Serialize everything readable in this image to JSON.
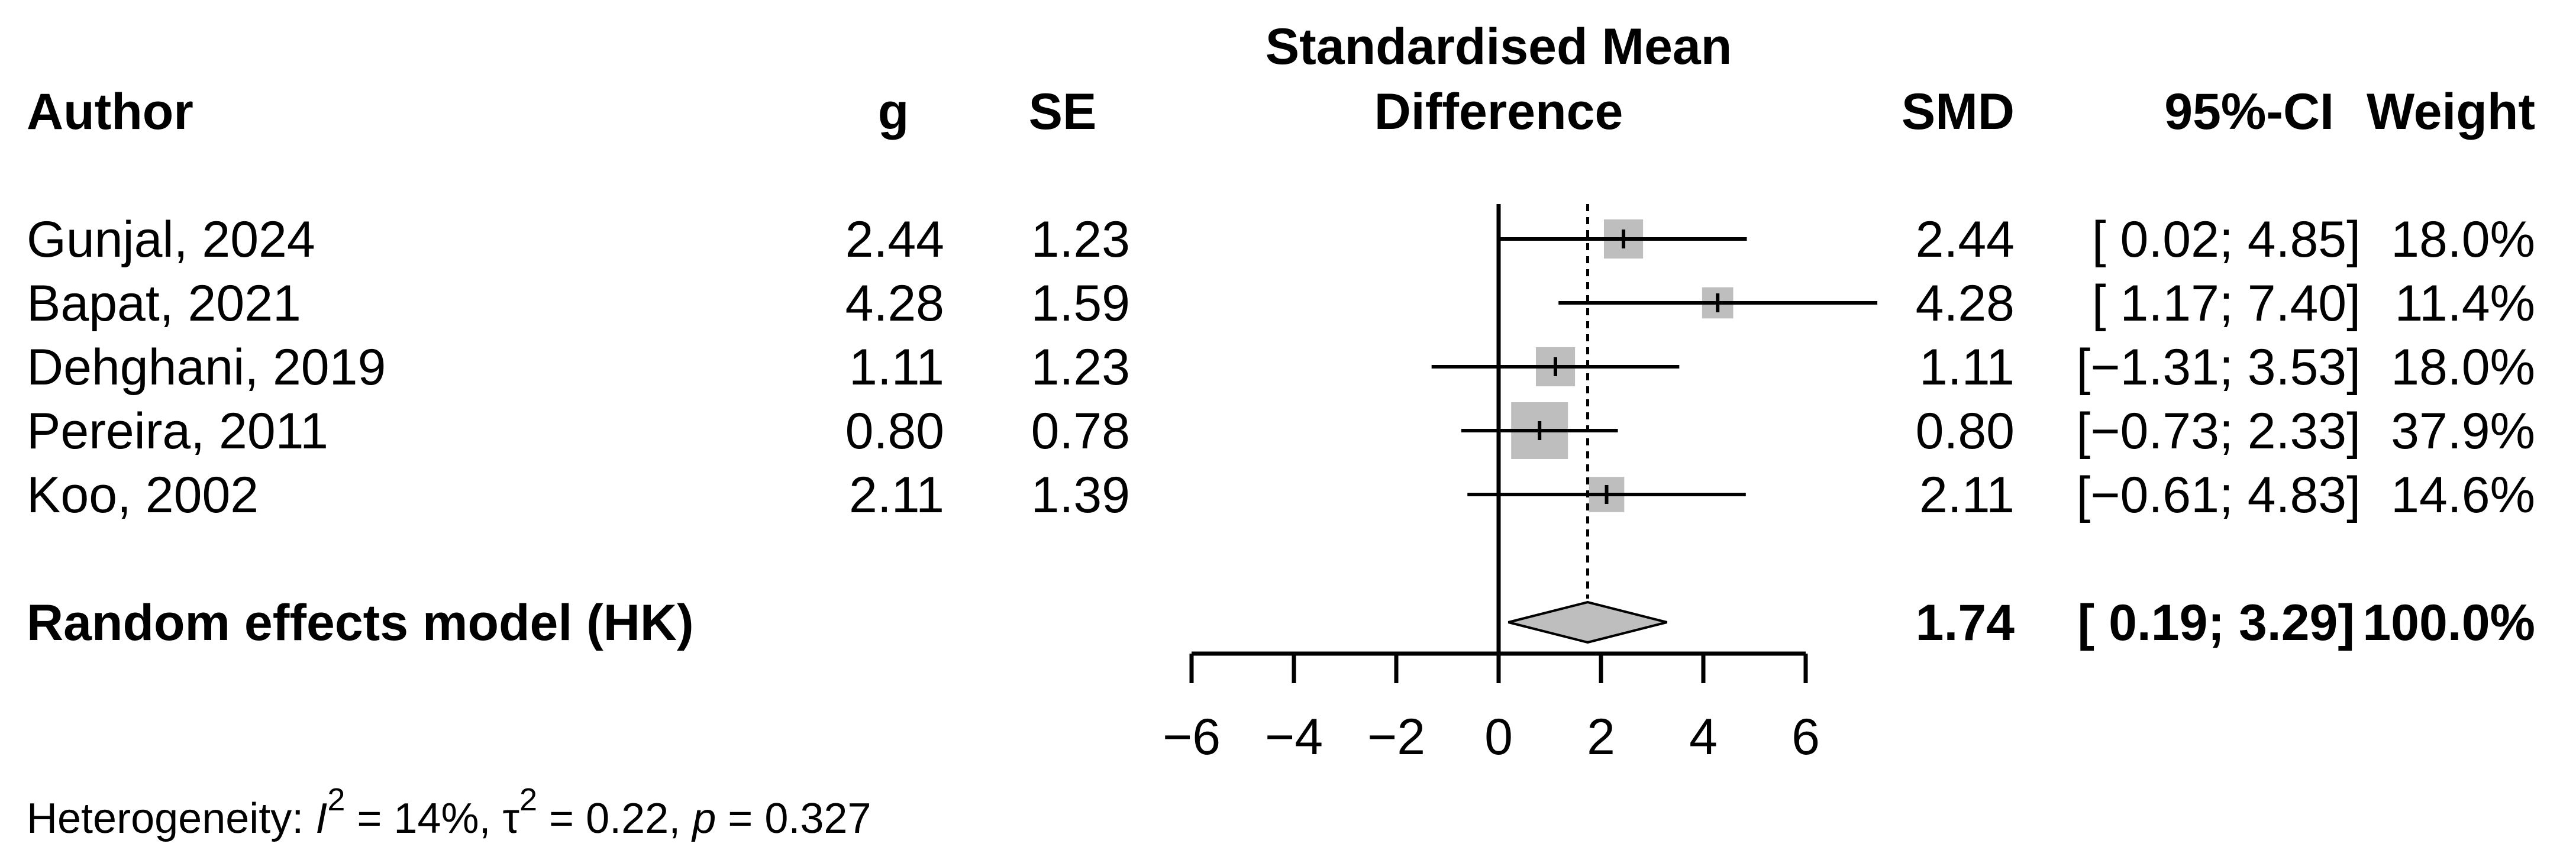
{
  "chart_data": {
    "type": "forest",
    "title": "Standardised Mean Difference",
    "columns": {
      "author": "Author",
      "g": "g",
      "se": "SE",
      "plot_line1": "Standardised Mean",
      "plot_line2": "Difference",
      "smd": "SMD",
      "ci": "95%-CI",
      "weight": "Weight"
    },
    "studies": [
      {
        "author": "Gunjal, 2024",
        "g": "2.44",
        "se": "1.23",
        "smd": "2.44",
        "ci": "[ 0.02;  4.85]",
        "weight": "18.0%",
        "est": 2.44,
        "lo": 0.02,
        "hi": 4.85,
        "w": 18.0
      },
      {
        "author": "Bapat, 2021",
        "g": "4.28",
        "se": "1.59",
        "smd": "4.28",
        "ci": "[ 1.17;  7.40]",
        "weight": "11.4%",
        "est": 4.28,
        "lo": 1.17,
        "hi": 7.4,
        "w": 11.4
      },
      {
        "author": "Dehghani, 2019",
        "g": "1.11",
        "se": "1.23",
        "smd": "1.11",
        "ci": "[−1.31;  3.53]",
        "weight": "18.0%",
        "est": 1.11,
        "lo": -1.31,
        "hi": 3.53,
        "w": 18.0
      },
      {
        "author": "Pereira, 2011",
        "g": "0.80",
        "se": "0.78",
        "smd": "0.80",
        "ci": "[−0.73;  2.33]",
        "weight": "37.9%",
        "est": 0.8,
        "lo": -0.73,
        "hi": 2.33,
        "w": 37.9
      },
      {
        "author": "Koo, 2002",
        "g": "2.11",
        "se": "1.39",
        "smd": "2.11",
        "ci": "[−0.61; 4.83]",
        "weight": "14.6%",
        "est": 2.11,
        "lo": -0.61,
        "hi": 4.83,
        "w": 14.6
      }
    ],
    "pooled": {
      "label": "Random effects model (HK)",
      "smd": "1.74",
      "ci": "[ 0.19; 3.29]",
      "weight": "100.0%",
      "est": 1.74,
      "lo": 0.19,
      "hi": 3.29
    },
    "x_axis": {
      "ticks": [
        -6,
        -4,
        -2,
        0,
        2,
        4,
        6
      ],
      "tick_labels": [
        "−6",
        "−4",
        "−2",
        "0",
        "2",
        "4",
        "6"
      ],
      "range": [
        -6,
        6
      ],
      "reference_line": 0
    },
    "heterogeneity": {
      "prefix": "Heterogeneity: ",
      "i_symbol": "I",
      "i_exp": "2",
      "i_value": " = 14%, ",
      "tau_symbol": "τ",
      "tau_exp": "2",
      "tau_value": " = 0.22, ",
      "p_symbol": "p",
      "p_value": " = 0.327"
    },
    "colors": {
      "square": "#bebebe",
      "diamond": "#bebebe",
      "line": "#000000"
    }
  }
}
